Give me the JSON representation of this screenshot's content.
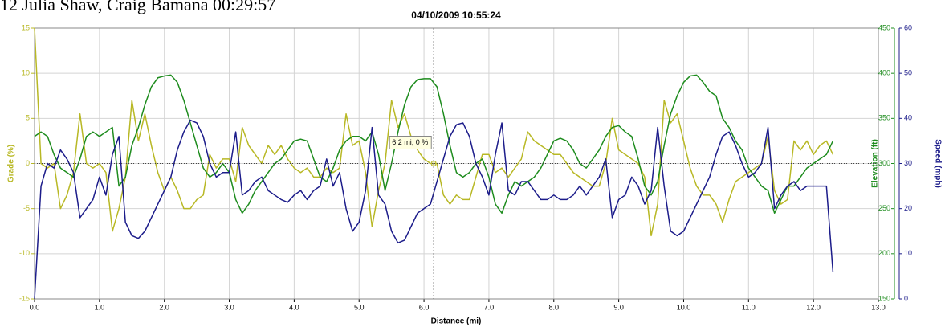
{
  "chart_data": {
    "type": "line",
    "heading": "12 Julia Shaw, Craig Bamana 00:29:57",
    "title": "04/10/2009 10:55:24",
    "xlabel": "Distance (mi)",
    "ylabel": "Grade (%)",
    "y2label": "Elevation (ft)",
    "y3label": "Speed (mph)",
    "xlim": [
      0,
      13
    ],
    "xticks": [
      {
        "value": 0,
        "label": "0.0"
      },
      {
        "value": 1,
        "label": "1.0"
      },
      {
        "value": 2,
        "label": "2.0"
      },
      {
        "value": 3,
        "label": "3.0"
      },
      {
        "value": 4,
        "label": "4.0"
      },
      {
        "value": 5,
        "label": "5.0"
      },
      {
        "value": 6,
        "label": "6.0"
      },
      {
        "value": 7,
        "label": "7.0"
      },
      {
        "value": 8,
        "label": "8.0"
      },
      {
        "value": 9,
        "label": "9.0"
      },
      {
        "value": 10,
        "label": "10.0"
      },
      {
        "value": 11,
        "label": "11.0"
      },
      {
        "value": 12,
        "label": "12.0"
      },
      {
        "value": 13,
        "label": "13.0"
      }
    ],
    "ylim": [
      -15,
      15
    ],
    "yticks": [
      15,
      10,
      5,
      0,
      -5,
      -10,
      -15
    ],
    "y2lim": [
      150,
      450
    ],
    "y2ticks": [
      450,
      400,
      350,
      300,
      250,
      200,
      150
    ],
    "y3lim": [
      0,
      60
    ],
    "y3ticks": [
      60,
      50,
      40,
      30,
      20,
      10,
      0
    ],
    "grid": true,
    "cursor": {
      "x": 6.15,
      "y": 0
    },
    "annotation": "6.2 mi, 0 %",
    "x": [
      0,
      0.1,
      0.2,
      0.3,
      0.4,
      0.5,
      0.6,
      0.7,
      0.8,
      0.9,
      1,
      1.1,
      1.2,
      1.3,
      1.4,
      1.5,
      1.6,
      1.7,
      1.8,
      1.9,
      2,
      2.1,
      2.2,
      2.3,
      2.4,
      2.5,
      2.6,
      2.7,
      2.8,
      2.9,
      3,
      3.1,
      3.2,
      3.3,
      3.4,
      3.5,
      3.6,
      3.7,
      3.8,
      3.9,
      4,
      4.1,
      4.2,
      4.3,
      4.4,
      4.5,
      4.6,
      4.7,
      4.8,
      4.9,
      5,
      5.1,
      5.2,
      5.3,
      5.4,
      5.5,
      5.6,
      5.7,
      5.8,
      5.9,
      6,
      6.1,
      6.2,
      6.3,
      6.4,
      6.5,
      6.6,
      6.7,
      6.8,
      6.9,
      7,
      7.1,
      7.2,
      7.3,
      7.4,
      7.5,
      7.6,
      7.7,
      7.8,
      7.9,
      8,
      8.1,
      8.2,
      8.3,
      8.4,
      8.5,
      8.6,
      8.7,
      8.8,
      8.9,
      9,
      9.1,
      9.2,
      9.3,
      9.4,
      9.5,
      9.6,
      9.7,
      9.8,
      9.9,
      10,
      10.1,
      10.2,
      10.3,
      10.4,
      10.5,
      10.6,
      10.7,
      10.8,
      10.9,
      11,
      11.1,
      11.2,
      11.3,
      11.4,
      11.5,
      11.6,
      11.7,
      11.8,
      11.9,
      12,
      12.1,
      12.2,
      12.3
    ],
    "series": [
      {
        "name": "Grade",
        "color": "#b8b825",
        "axis": "y",
        "values": [
          15,
          0,
          -0.5,
          0,
          -5,
          -3.5,
          -1,
          5.5,
          0,
          -0.5,
          0,
          -1,
          -7.5,
          -5,
          -1.5,
          7,
          2.5,
          5.5,
          2,
          -1,
          -3,
          -1.5,
          -3,
          -5,
          -5,
          -4,
          -3.5,
          1,
          -0.5,
          0.5,
          0.5,
          -2,
          4,
          2,
          1,
          0,
          2,
          1,
          2,
          0.5,
          -0.5,
          -1,
          -0.5,
          -1.5,
          -1.5,
          -0.5,
          -1,
          -0.5,
          5.5,
          2,
          2.5,
          -1,
          -7,
          -3,
          0,
          7,
          4,
          5.5,
          3,
          1.5,
          0.5,
          0,
          0,
          -3.5,
          -4.5,
          -3.5,
          -4,
          -4,
          -1.5,
          1,
          1,
          -1,
          -0.5,
          -1.5,
          -0.5,
          0.5,
          3.5,
          2.5,
          2,
          1.5,
          1,
          1,
          0,
          -1,
          -1.5,
          -2,
          -2.5,
          -2.5,
          0,
          5,
          1.5,
          1,
          0.5,
          0,
          -1.5,
          -8,
          -4.5,
          7,
          4.5,
          5.5,
          2.5,
          -0.5,
          -2.5,
          -3.5,
          -3.5,
          -4.5,
          -6.5,
          -4,
          -2,
          -1.5,
          -1,
          -0.5,
          0,
          3,
          -3,
          -4.5,
          -4,
          2.5,
          1.5,
          2.5,
          1,
          2,
          2.5,
          1
        ]
      },
      {
        "name": "Elevation",
        "color": "#1e8c1e",
        "axis": "y2",
        "values": [
          330,
          335,
          330,
          310,
          295,
          290,
          285,
          305,
          330,
          335,
          330,
          335,
          340,
          275,
          285,
          320,
          340,
          365,
          385,
          395,
          397,
          398,
          390,
          370,
          345,
          320,
          295,
          285,
          290,
          300,
          290,
          260,
          245,
          255,
          270,
          280,
          290,
          300,
          305,
          315,
          325,
          327,
          325,
          305,
          285,
          280,
          295,
          315,
          325,
          330,
          330,
          325,
          335,
          310,
          270,
          300,
          335,
          365,
          385,
          393,
          394,
          394,
          385,
          355,
          320,
          290,
          285,
          290,
          300,
          305,
          285,
          255,
          245,
          265,
          280,
          275,
          280,
          285,
          295,
          310,
          325,
          328,
          325,
          315,
          300,
          295,
          305,
          315,
          330,
          340,
          342,
          335,
          330,
          305,
          275,
          265,
          280,
          320,
          355,
          375,
          390,
          397,
          398,
          390,
          380,
          375,
          350,
          340,
          325,
          315,
          295,
          285,
          275,
          270,
          245,
          260,
          275,
          275,
          285,
          295,
          300,
          305,
          310,
          325
        ]
      },
      {
        "name": "Speed",
        "color": "#1c1c8a",
        "axis": "y3",
        "values": [
          0,
          25,
          30,
          29,
          33,
          31,
          28,
          18,
          20,
          22,
          27,
          23,
          32,
          36,
          17,
          14,
          13.4,
          15,
          18,
          21,
          24,
          27,
          33,
          37,
          39.6,
          39,
          36,
          30,
          27,
          28,
          28,
          37,
          23,
          24,
          26,
          27,
          24,
          23,
          22,
          21.4,
          23,
          24,
          22,
          24,
          25,
          31,
          25,
          28,
          20,
          15,
          17,
          24,
          38,
          23,
          21,
          15,
          12.4,
          13,
          16,
          19,
          20,
          21,
          26,
          31,
          36,
          38.6,
          39,
          36,
          30,
          27,
          23,
          32,
          39,
          24,
          23,
          26,
          26,
          24,
          22,
          22,
          23,
          22,
          22,
          23,
          25,
          23,
          25,
          27,
          31,
          18,
          22,
          23,
          27,
          25,
          21,
          24,
          38,
          25,
          15,
          14,
          15,
          18,
          21,
          24,
          27,
          32,
          36,
          37,
          34,
          30,
          27,
          28,
          30,
          38,
          20,
          23,
          25,
          26,
          24,
          25,
          25,
          25,
          25,
          6
        ]
      }
    ]
  }
}
